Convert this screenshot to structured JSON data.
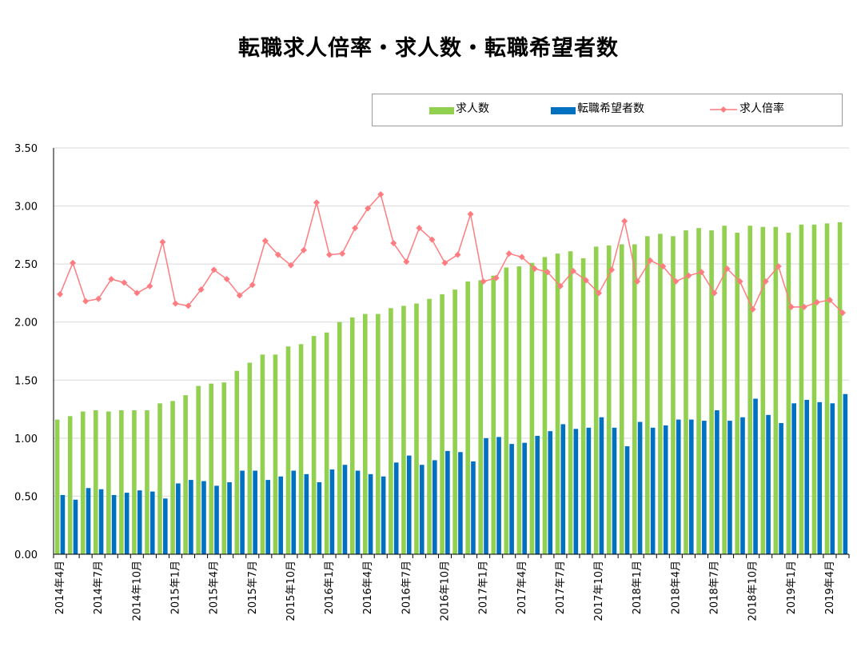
{
  "chart_data": {
    "type": "bar",
    "title": "転職求人倍率・求人数・転職希望者数",
    "xlabel": "",
    "ylabel": "",
    "ylim": [
      0,
      3.5
    ],
    "yticks": [
      "0.00",
      "0.50",
      "1.00",
      "1.50",
      "2.00",
      "2.50",
      "3.00",
      "3.50"
    ],
    "grid": true,
    "legend_position": "top-right",
    "xticklabels": [
      "2014年4月",
      "2014年7月",
      "2014年10月",
      "2015年1月",
      "2015年4月",
      "2015年7月",
      "2015年10月",
      "2016年1月",
      "2016年4月",
      "2016年7月",
      "2016年10月",
      "2017年1月",
      "2017年4月",
      "2017年7月",
      "2017年10月",
      "2018年1月",
      "2018年4月",
      "2018年7月",
      "2018年10月",
      "2019年1月",
      "2019年4月"
    ],
    "x": [
      "2014-04",
      "2014-05",
      "2014-06",
      "2014-07",
      "2014-08",
      "2014-09",
      "2014-10",
      "2014-11",
      "2014-12",
      "2015-01",
      "2015-02",
      "2015-03",
      "2015-04",
      "2015-05",
      "2015-06",
      "2015-07",
      "2015-08",
      "2015-09",
      "2015-10",
      "2015-11",
      "2015-12",
      "2016-01",
      "2016-02",
      "2016-03",
      "2016-04",
      "2016-05",
      "2016-06",
      "2016-07",
      "2016-08",
      "2016-09",
      "2016-10",
      "2016-11",
      "2016-12",
      "2017-01",
      "2017-02",
      "2017-03",
      "2017-04",
      "2017-05",
      "2017-06",
      "2017-07",
      "2017-08",
      "2017-09",
      "2017-10",
      "2017-11",
      "2017-12",
      "2018-01",
      "2018-02",
      "2018-03",
      "2018-04",
      "2018-05",
      "2018-06",
      "2018-07",
      "2018-08",
      "2018-09",
      "2018-10",
      "2018-11",
      "2018-12",
      "2019-01",
      "2019-02",
      "2019-03",
      "2019-04",
      "2019-05"
    ],
    "series": [
      {
        "name": "求人数",
        "kind": "bar",
        "color": "#92d050",
        "values": [
          1.16,
          1.19,
          1.23,
          1.24,
          1.23,
          1.24,
          1.24,
          1.24,
          1.3,
          1.32,
          1.37,
          1.45,
          1.47,
          1.48,
          1.58,
          1.65,
          1.72,
          1.72,
          1.79,
          1.81,
          1.88,
          1.91,
          2.0,
          2.04,
          2.07,
          2.07,
          2.12,
          2.14,
          2.16,
          2.2,
          2.24,
          2.28,
          2.35,
          2.36,
          2.4,
          2.47,
          2.48,
          2.51,
          2.56,
          2.59,
          2.61,
          2.55,
          2.65,
          2.66,
          2.67,
          2.67,
          2.74,
          2.76,
          2.74,
          2.79,
          2.81,
          2.79,
          2.83,
          2.77,
          2.83,
          2.82,
          2.82,
          2.77,
          2.84,
          2.84,
          2.85,
          2.86
        ]
      },
      {
        "name": "転職希望者数",
        "kind": "bar",
        "color": "#0070c0",
        "values": [
          0.51,
          0.47,
          0.57,
          0.56,
          0.51,
          0.53,
          0.55,
          0.54,
          0.48,
          0.61,
          0.64,
          0.63,
          0.59,
          0.62,
          0.72,
          0.72,
          0.64,
          0.67,
          0.72,
          0.69,
          0.62,
          0.73,
          0.77,
          0.72,
          0.69,
          0.67,
          0.79,
          0.85,
          0.77,
          0.81,
          0.89,
          0.88,
          0.8,
          1.0,
          1.01,
          0.95,
          0.96,
          1.02,
          1.06,
          1.12,
          1.08,
          1.09,
          1.18,
          1.09,
          0.93,
          1.14,
          1.09,
          1.11,
          1.16,
          1.16,
          1.15,
          1.24,
          1.15,
          1.18,
          1.34,
          1.2,
          1.13,
          1.3,
          1.33,
          1.31,
          1.3,
          1.38
        ]
      },
      {
        "name": "求人倍率",
        "kind": "line",
        "color": "#ff7c80",
        "values": [
          2.24,
          2.51,
          2.18,
          2.2,
          2.37,
          2.34,
          2.25,
          2.31,
          2.69,
          2.16,
          2.14,
          2.28,
          2.45,
          2.37,
          2.23,
          2.32,
          2.7,
          2.58,
          2.49,
          2.62,
          3.03,
          2.58,
          2.59,
          2.81,
          2.98,
          3.1,
          2.68,
          2.52,
          2.81,
          2.71,
          2.51,
          2.58,
          2.93,
          2.35,
          2.38,
          2.59,
          2.56,
          2.46,
          2.43,
          2.31,
          2.44,
          2.36,
          2.25,
          2.45,
          2.87,
          2.35,
          2.53,
          2.48,
          2.35,
          2.4,
          2.43,
          2.25,
          2.46,
          2.35,
          2.11,
          2.35,
          2.48,
          2.13,
          2.13,
          2.17,
          2.19,
          2.08
        ]
      }
    ]
  }
}
